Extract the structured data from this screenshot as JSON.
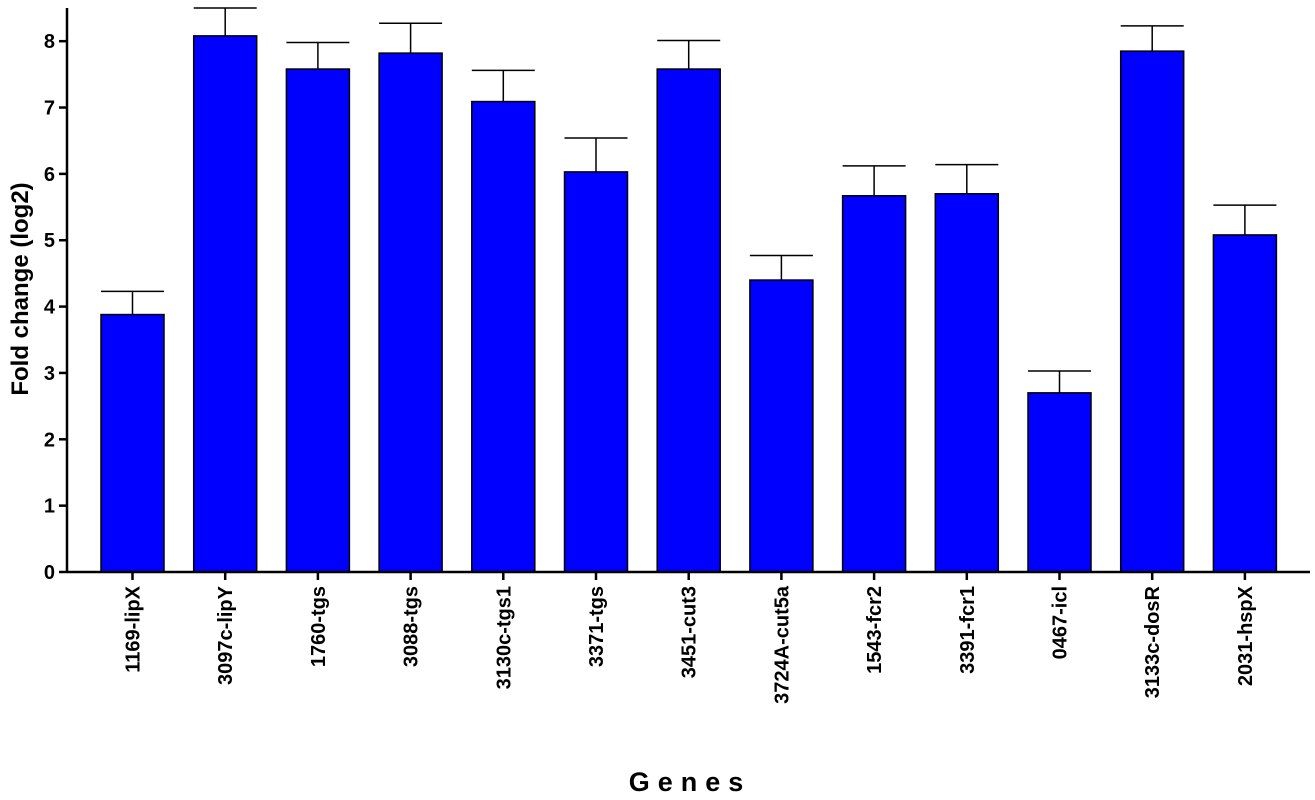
{
  "chart_data": {
    "type": "bar",
    "title": "",
    "xlabel": "Genes",
    "ylabel": "Fold change (log2)",
    "ylim": [
      0,
      8.5
    ],
    "yticks": [
      0,
      1,
      2,
      3,
      4,
      5,
      6,
      7,
      8
    ],
    "categories": [
      "1169-lipX",
      "3097c-lipY",
      "1760-tgs",
      "3088-tgs",
      "3130c-tgs1",
      "3371-tgs",
      "3451-cut3",
      "3724A-cut5a",
      "1543-fcr2",
      "3391-fcr1",
      "0467-icl",
      "3133c-dosR",
      "2031-hspX"
    ],
    "series": [
      {
        "values": [
          3.88,
          8.08,
          7.58,
          7.82,
          7.09,
          6.03,
          7.58,
          4.4,
          5.67,
          5.7,
          2.7,
          7.85,
          5.08
        ],
        "errors": [
          0.35,
          0.5,
          0.4,
          0.45,
          0.47,
          0.51,
          0.43,
          0.37,
          0.45,
          0.44,
          0.33,
          0.38,
          0.45
        ]
      }
    ],
    "bar_color": "#0000ff",
    "grid": false,
    "legend": "none"
  }
}
